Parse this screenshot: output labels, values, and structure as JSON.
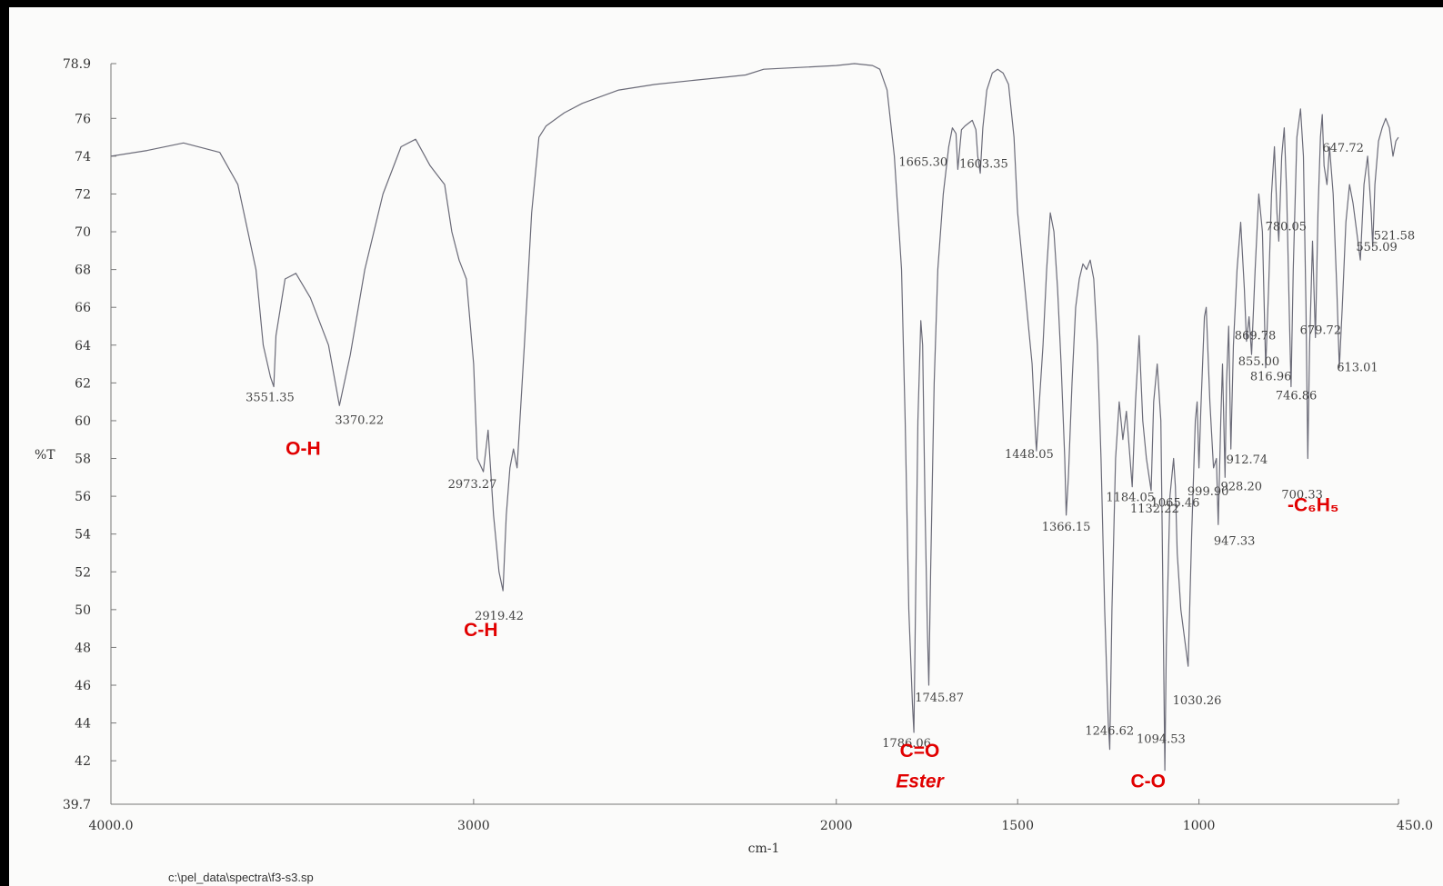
{
  "chart_data": {
    "type": "line",
    "title": "",
    "xlabel": "cm-1",
    "ylabel": "%T",
    "xlim": [
      4000.0,
      450.0
    ],
    "ylim": [
      39.7,
      78.9
    ],
    "x_ticks": [
      {
        "value": 4000,
        "label": "4000.0"
      },
      {
        "value": 3000,
        "label": "3000"
      },
      {
        "value": 2000,
        "label": "2000"
      },
      {
        "value": 1500,
        "label": "1500"
      },
      {
        "value": 1000,
        "label": "1000"
      },
      {
        "value": 450,
        "label": "450.0"
      }
    ],
    "y_ticks": [
      {
        "value": 78.9,
        "label": "78.9"
      },
      {
        "value": 76,
        "label": "76"
      },
      {
        "value": 74,
        "label": "74"
      },
      {
        "value": 72,
        "label": "72"
      },
      {
        "value": 70,
        "label": "70"
      },
      {
        "value": 68,
        "label": "68"
      },
      {
        "value": 66,
        "label": "66"
      },
      {
        "value": 64,
        "label": "64"
      },
      {
        "value": 62,
        "label": "62"
      },
      {
        "value": 60,
        "label": "60"
      },
      {
        "value": 58,
        "label": "58"
      },
      {
        "value": 56,
        "label": "56"
      },
      {
        "value": 54,
        "label": "54"
      },
      {
        "value": 52,
        "label": "52"
      },
      {
        "value": 50,
        "label": "50"
      },
      {
        "value": 48,
        "label": "48"
      },
      {
        "value": 46,
        "label": "46"
      },
      {
        "value": 44,
        "label": "44"
      },
      {
        "value": 42,
        "label": "42"
      },
      {
        "value": 39.7,
        "label": "39.7"
      }
    ],
    "series": [
      {
        "color": "#6b6b78",
        "points": [
          [
            4000,
            74.0
          ],
          [
            3900,
            74.3
          ],
          [
            3800,
            74.7
          ],
          [
            3700,
            74.2
          ],
          [
            3650,
            72.5
          ],
          [
            3600,
            68.0
          ],
          [
            3580,
            64.0
          ],
          [
            3560,
            62.3
          ],
          [
            3551,
            61.8
          ],
          [
            3545,
            64.5
          ],
          [
            3520,
            67.5
          ],
          [
            3490,
            67.8
          ],
          [
            3450,
            66.5
          ],
          [
            3400,
            64.0
          ],
          [
            3370,
            60.8
          ],
          [
            3340,
            63.5
          ],
          [
            3300,
            68.0
          ],
          [
            3250,
            72.0
          ],
          [
            3200,
            74.5
          ],
          [
            3160,
            74.9
          ],
          [
            3120,
            73.5
          ],
          [
            3100,
            73.0
          ],
          [
            3080,
            72.5
          ],
          [
            3060,
            70.0
          ],
          [
            3040,
            68.5
          ],
          [
            3020,
            67.5
          ],
          [
            3000,
            63.0
          ],
          [
            2990,
            58.0
          ],
          [
            2973,
            57.3
          ],
          [
            2960,
            59.5
          ],
          [
            2945,
            55.0
          ],
          [
            2930,
            52.0
          ],
          [
            2919,
            51.0
          ],
          [
            2910,
            55.0
          ],
          [
            2900,
            57.5
          ],
          [
            2890,
            58.5
          ],
          [
            2880,
            57.5
          ],
          [
            2860,
            64.0
          ],
          [
            2840,
            71.0
          ],
          [
            2820,
            75.0
          ],
          [
            2800,
            75.6
          ],
          [
            2750,
            76.3
          ],
          [
            2700,
            76.8
          ],
          [
            2600,
            77.5
          ],
          [
            2500,
            77.8
          ],
          [
            2400,
            78.0
          ],
          [
            2300,
            78.2
          ],
          [
            2250,
            78.3
          ],
          [
            2200,
            78.6
          ],
          [
            2100,
            78.7
          ],
          [
            2000,
            78.8
          ],
          [
            1950,
            78.9
          ],
          [
            1900,
            78.8
          ],
          [
            1880,
            78.6
          ],
          [
            1860,
            77.5
          ],
          [
            1840,
            74.0
          ],
          [
            1820,
            68.0
          ],
          [
            1810,
            60.0
          ],
          [
            1800,
            50.0
          ],
          [
            1790,
            45.0
          ],
          [
            1786,
            43.5
          ],
          [
            1783,
            48.0
          ],
          [
            1775,
            60.0
          ],
          [
            1767,
            65.3
          ],
          [
            1762,
            64.0
          ],
          [
            1755,
            55.0
          ],
          [
            1749,
            49.0
          ],
          [
            1745,
            46.0
          ],
          [
            1740,
            52.0
          ],
          [
            1730,
            62.0
          ],
          [
            1720,
            68.0
          ],
          [
            1705,
            72.0
          ],
          [
            1690,
            74.5
          ],
          [
            1680,
            75.5
          ],
          [
            1670,
            75.2
          ],
          [
            1665,
            73.3
          ],
          [
            1655,
            75.4
          ],
          [
            1645,
            75.6
          ],
          [
            1625,
            75.9
          ],
          [
            1615,
            75.4
          ],
          [
            1610,
            74.0
          ],
          [
            1603,
            73.1
          ],
          [
            1596,
            75.5
          ],
          [
            1585,
            77.5
          ],
          [
            1570,
            78.4
          ],
          [
            1555,
            78.6
          ],
          [
            1540,
            78.4
          ],
          [
            1525,
            77.8
          ],
          [
            1510,
            75.0
          ],
          [
            1500,
            71.0
          ],
          [
            1490,
            69.0
          ],
          [
            1480,
            67.0
          ],
          [
            1470,
            65.0
          ],
          [
            1460,
            63.0
          ],
          [
            1450,
            59.0
          ],
          [
            1448,
            58.4
          ],
          [
            1440,
            61.0
          ],
          [
            1430,
            64.0
          ],
          [
            1420,
            68.0
          ],
          [
            1410,
            71.0
          ],
          [
            1400,
            70.0
          ],
          [
            1390,
            67.0
          ],
          [
            1380,
            63.0
          ],
          [
            1370,
            58.0
          ],
          [
            1366,
            55.0
          ],
          [
            1360,
            57.0
          ],
          [
            1350,
            62.0
          ],
          [
            1340,
            66.0
          ],
          [
            1330,
            67.5
          ],
          [
            1320,
            68.3
          ],
          [
            1310,
            68.0
          ],
          [
            1300,
            68.5
          ],
          [
            1290,
            67.5
          ],
          [
            1280,
            64.0
          ],
          [
            1270,
            58.0
          ],
          [
            1260,
            50.0
          ],
          [
            1250,
            44.0
          ],
          [
            1246,
            42.6
          ],
          [
            1240,
            50.0
          ],
          [
            1230,
            58.0
          ],
          [
            1220,
            61.0
          ],
          [
            1210,
            59.0
          ],
          [
            1200,
            60.5
          ],
          [
            1190,
            58.0
          ],
          [
            1184,
            56.5
          ],
          [
            1175,
            61.0
          ],
          [
            1165,
            64.5
          ],
          [
            1155,
            60.0
          ],
          [
            1145,
            58.0
          ],
          [
            1132,
            56.3
          ],
          [
            1125,
            61.0
          ],
          [
            1115,
            63.0
          ],
          [
            1105,
            60.0
          ],
          [
            1100,
            52.0
          ],
          [
            1096,
            45.0
          ],
          [
            1094,
            41.5
          ],
          [
            1090,
            48.0
          ],
          [
            1080,
            56.0
          ],
          [
            1070,
            58.0
          ],
          [
            1065,
            56.5
          ],
          [
            1060,
            53.0
          ],
          [
            1050,
            50.0
          ],
          [
            1040,
            48.5
          ],
          [
            1030,
            47.0
          ],
          [
            1020,
            54.0
          ],
          [
            1010,
            60.0
          ],
          [
            1005,
            61.0
          ],
          [
            1000,
            57.5
          ],
          [
            995,
            60.5
          ],
          [
            985,
            65.5
          ],
          [
            980,
            66.0
          ],
          [
            970,
            61.0
          ],
          [
            960,
            57.5
          ],
          [
            952,
            58.0
          ],
          [
            947,
            54.5
          ],
          [
            940,
            60.0
          ],
          [
            935,
            63.0
          ],
          [
            928,
            57.0
          ],
          [
            924,
            62.0
          ],
          [
            918,
            65.0
          ],
          [
            912,
            58.5
          ],
          [
            905,
            64.0
          ],
          [
            895,
            68.0
          ],
          [
            885,
            70.5
          ],
          [
            875,
            67.0
          ],
          [
            869,
            64.2
          ],
          [
            862,
            65.5
          ],
          [
            855,
            63.5
          ],
          [
            845,
            68.0
          ],
          [
            835,
            72.0
          ],
          [
            825,
            70.0
          ],
          [
            816,
            62.8
          ],
          [
            808,
            67.0
          ],
          [
            800,
            72.0
          ],
          [
            792,
            74.5
          ],
          [
            785,
            71.0
          ],
          [
            780,
            69.5
          ],
          [
            772,
            74.0
          ],
          [
            765,
            75.5
          ],
          [
            758,
            72.0
          ],
          [
            750,
            65.0
          ],
          [
            746,
            61.8
          ],
          [
            740,
            68.0
          ],
          [
            730,
            75.0
          ],
          [
            720,
            76.5
          ],
          [
            712,
            74.0
          ],
          [
            705,
            66.0
          ],
          [
            700,
            58.0
          ],
          [
            695,
            64.0
          ],
          [
            687,
            69.5
          ],
          [
            679,
            64.4
          ],
          [
            672,
            71.0
          ],
          [
            665,
            75.0
          ],
          [
            660,
            76.2
          ],
          [
            655,
            73.5
          ],
          [
            647,
            72.5
          ],
          [
            640,
            74.5
          ],
          [
            630,
            72.0
          ],
          [
            620,
            67.0
          ],
          [
            613,
            62.8
          ],
          [
            605,
            66.0
          ],
          [
            595,
            70.5
          ],
          [
            585,
            72.5
          ],
          [
            575,
            71.5
          ],
          [
            565,
            70.0
          ],
          [
            555,
            68.5
          ],
          [
            545,
            72.5
          ],
          [
            535,
            74.0
          ],
          [
            525,
            71.0
          ],
          [
            521,
            69.2
          ],
          [
            515,
            72.5
          ],
          [
            505,
            74.8
          ],
          [
            495,
            75.5
          ],
          [
            485,
            76.0
          ],
          [
            475,
            75.5
          ],
          [
            465,
            74.0
          ],
          [
            457,
            74.8
          ],
          [
            450,
            75.0
          ]
        ]
      }
    ],
    "peak_labels": [
      {
        "x": 3551.35,
        "y": 61.8,
        "label": "3551.35"
      },
      {
        "x": 3370.22,
        "y": 60.8,
        "label": "3370.22"
      },
      {
        "x": 2973.27,
        "y": 57.3,
        "label": "2973.27"
      },
      {
        "x": 2919.42,
        "y": 51.0,
        "label": "2919.42"
      },
      {
        "x": 1786.06,
        "y": 43.5,
        "label": "1786.06"
      },
      {
        "x": 1745.87,
        "y": 46.0,
        "label": "1745.87"
      },
      {
        "x": 1665.3,
        "y": 73.3,
        "label": "1665.30"
      },
      {
        "x": 1603.35,
        "y": 73.1,
        "label": "1603.35"
      },
      {
        "x": 1448.05,
        "y": 58.4,
        "label": "1448.05"
      },
      {
        "x": 1366.15,
        "y": 55.0,
        "label": "1366.15"
      },
      {
        "x": 1246.62,
        "y": 42.6,
        "label": "1246.62"
      },
      {
        "x": 1184.05,
        "y": 56.5,
        "label": "1184.05"
      },
      {
        "x": 1132.22,
        "y": 56.3,
        "label": "1132.22"
      },
      {
        "x": 1094.53,
        "y": 41.5,
        "label": "1094.53"
      },
      {
        "x": 1065.46,
        "y": 56.5,
        "label": "1065.46"
      },
      {
        "x": 1030.26,
        "y": 47.0,
        "label": "1030.26"
      },
      {
        "x": 999.9,
        "y": 57.5,
        "label": "999.90"
      },
      {
        "x": 947.33,
        "y": 54.5,
        "label": "947.33"
      },
      {
        "x": 928.2,
        "y": 57.0,
        "label": "928.20"
      },
      {
        "x": 912.74,
        "y": 58.5,
        "label": "912.74"
      },
      {
        "x": 869.78,
        "y": 64.2,
        "label": "869.78"
      },
      {
        "x": 855.0,
        "y": 63.5,
        "label": "855.00"
      },
      {
        "x": 816.96,
        "y": 62.8,
        "label": "816.96"
      },
      {
        "x": 780.05,
        "y": 69.5,
        "label": "780.05"
      },
      {
        "x": 746.86,
        "y": 61.8,
        "label": "746.86"
      },
      {
        "x": 700.33,
        "y": 58.0,
        "label": "700.33"
      },
      {
        "x": 679.72,
        "y": 64.4,
        "label": "679.72"
      },
      {
        "x": 647.72,
        "y": 72.5,
        "label": "647.72"
      },
      {
        "x": 613.01,
        "y": 62.8,
        "label": "613.01"
      },
      {
        "x": 555.09,
        "y": 68.5,
        "label": "555.09"
      },
      {
        "x": 521.58,
        "y": 69.2,
        "label": "521.58"
      }
    ],
    "annotations": [
      {
        "label": "O-H",
        "x": 3470,
        "y": 58.2
      },
      {
        "label": "C-H",
        "x": 2980,
        "y": 48.6
      },
      {
        "label": "C=O",
        "x": 1770,
        "y": 42.2
      },
      {
        "label": "Ester",
        "x": 1770,
        "y": 40.6
      },
      {
        "label": "C-O",
        "x": 1140,
        "y": 40.6
      },
      {
        "label": "-C₆H₅",
        "x": 685,
        "y": 55.2
      }
    ],
    "file_path": "c:\\pel_data\\spectra\\f3-s3.sp"
  }
}
